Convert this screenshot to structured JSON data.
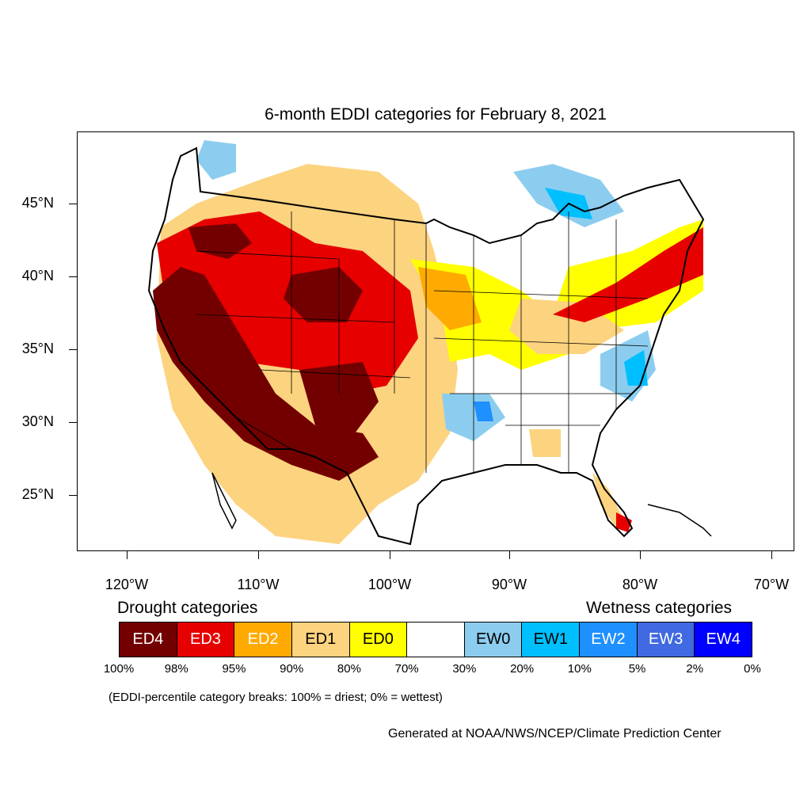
{
  "title": "6-month EDDI categories for February 8, 2021",
  "lat_labels": [
    "45°N",
    "40°N",
    "35°N",
    "30°N",
    "25°N"
  ],
  "lon_labels": [
    "120°W",
    "110°W",
    "100°W",
    "90°W",
    "80°W",
    "70°W"
  ],
  "legend": {
    "drought_title": "Drought categories",
    "wetness_title": "Wetness categories",
    "categories": [
      {
        "label": "ED4",
        "color": "#730000",
        "text_color": "#ffffff"
      },
      {
        "label": "ED3",
        "color": "#e60000",
        "text_color": "#ffffff"
      },
      {
        "label": "ED2",
        "color": "#ffaa00",
        "text_color": "#ffffff"
      },
      {
        "label": "ED1",
        "color": "#fcd37f",
        "text_color": "#000000"
      },
      {
        "label": "ED0",
        "color": "#ffff00",
        "text_color": "#000000"
      },
      {
        "label": "",
        "color": "#ffffff",
        "text_color": "#000000"
      },
      {
        "label": "EW0",
        "color": "#8ccdef",
        "text_color": "#000000"
      },
      {
        "label": "EW1",
        "color": "#00bfff",
        "text_color": "#000000"
      },
      {
        "label": "EW2",
        "color": "#1e90ff",
        "text_color": "#ffffff"
      },
      {
        "label": "EW3",
        "color": "#4169e1",
        "text_color": "#ffffff"
      },
      {
        "label": "EW4",
        "color": "#0000ff",
        "text_color": "#ffffff"
      }
    ],
    "breaks": [
      "100%",
      "98%",
      "95%",
      "90%",
      "80%",
      "70%",
      "30%",
      "20%",
      "10%",
      "5%",
      "2%",
      "0%"
    ]
  },
  "note": "(EDDI-percentile category breaks: 100% = driest; 0% = wettest)",
  "credit": "Generated at NOAA/NWS/NCEP/Climate Prediction Center"
}
